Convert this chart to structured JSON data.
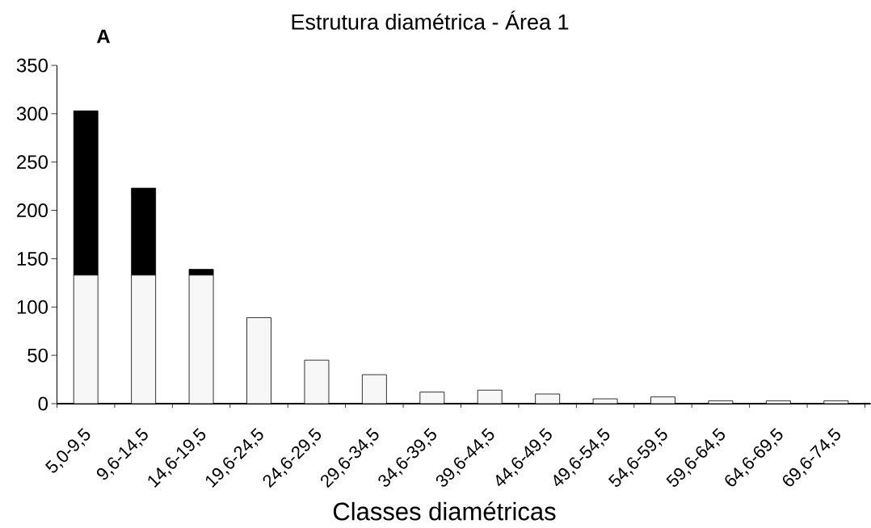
{
  "chart_data": {
    "type": "bar",
    "title": "Estrutura diamétrica - Área 1",
    "xlabel": "Classes diamétricas",
    "annotations": [
      "A"
    ],
    "categories": [
      "5,0-9,5",
      "9,6-14,5",
      "14,6-19,5",
      "19,6-24,5",
      "24,6-29,5",
      "29,6-34,5",
      "34,6-39,5",
      "39,6-44,5",
      "44,6-49,5",
      "49,6-54,5",
      "54,6-59,5",
      "59,6-64,5",
      "64,6-69,5",
      "69,6-74,5"
    ],
    "stacked": true,
    "series": [
      {
        "color": "#f7f7f7",
        "values": [
          133,
          133,
          133,
          89,
          45,
          30,
          12,
          14,
          10,
          5,
          7,
          3,
          3,
          3
        ]
      },
      {
        "color": "#000000",
        "values": [
          170,
          90,
          6,
          null,
          null,
          null,
          null,
          null,
          null,
          null,
          null,
          null,
          null,
          null
        ]
      }
    ],
    "ylim": [
      0,
      350
    ],
    "yticks": [
      0,
      50,
      100,
      150,
      200,
      250,
      300,
      350
    ]
  }
}
